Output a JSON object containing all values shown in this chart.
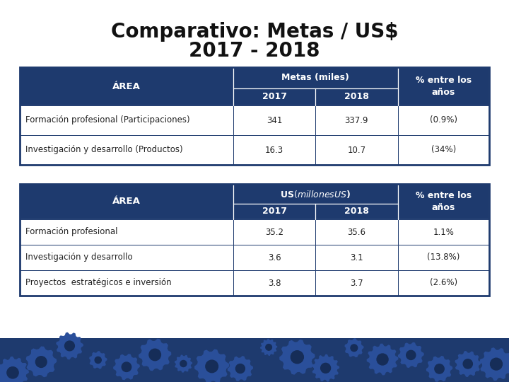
{
  "title_line1": "Comparativo: Metas / US$",
  "title_line2": "2017 - 2018",
  "title_fontsize": 20,
  "title_fontweight": "bold",
  "bg_color": "#ffffff",
  "header_color": "#1e3a6e",
  "header_text_color": "#ffffff",
  "border_color": "#1e3a6e",
  "text_color": "#222222",
  "footer_color": "#1e3a6e",
  "footer_gear_color": "#2a4f9a",
  "table1": {
    "header_col": "ÁREA",
    "subheader": "Metas (miles)",
    "col2": "2017",
    "col3": "2018",
    "col4": "% entre los\naños",
    "rows": [
      [
        "Formación profesional (Participaciones)",
        "341",
        "337.9",
        "(0.9%)"
      ],
      [
        "Investigación y desarrollo (Productos)",
        "16.3",
        "10.7",
        "(34%)"
      ]
    ]
  },
  "table2": {
    "header_col": "ÁREA",
    "subheader": "US$ (millones US$)",
    "col2": "2017",
    "col3": "2018",
    "col4": "% entre los\naños",
    "rows": [
      [
        "Formación profesional",
        "35.2",
        "35.6",
        "1.1%"
      ],
      [
        "Investigación y desarrollo",
        "3.6",
        "3.1",
        "(13.8%)"
      ],
      [
        "Proyectos  estratégicos e inversión",
        "3.8",
        "3.7",
        "(2.6%)"
      ]
    ]
  }
}
